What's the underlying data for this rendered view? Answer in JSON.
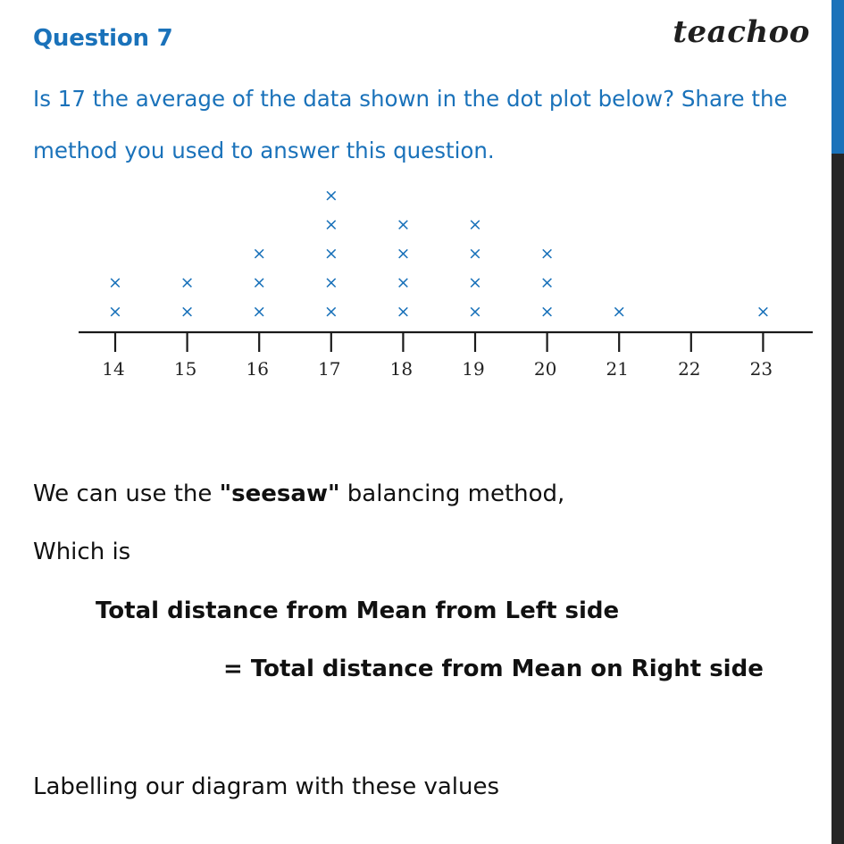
{
  "header": {
    "title": "Question 7",
    "brand": "teachoo"
  },
  "question": {
    "text": "Is 17 the average of the data shown in the dot plot below? Share the method you used to answer this question."
  },
  "chart_data": {
    "type": "scatter",
    "marker": "×",
    "x_ticks": [
      14,
      15,
      16,
      17,
      18,
      19,
      20,
      21,
      22,
      23
    ],
    "x_range": [
      14,
      23
    ],
    "counts": [
      {
        "x": 14,
        "count": 2
      },
      {
        "x": 15,
        "count": 2
      },
      {
        "x": 16,
        "count": 3
      },
      {
        "x": 17,
        "count": 5
      },
      {
        "x": 18,
        "count": 4
      },
      {
        "x": 19,
        "count": 4
      },
      {
        "x": 20,
        "count": 3
      },
      {
        "x": 21,
        "count": 1
      },
      {
        "x": 22,
        "count": 0
      },
      {
        "x": 23,
        "count": 1
      }
    ],
    "grid": false
  },
  "explanation": {
    "intro_pre": "We can use the ",
    "intro_bold": "\"seesaw\"",
    "intro_post": " balancing method,",
    "which": "Which is",
    "rule_left": "Total distance from Mean from Left side",
    "rule_right": "= Total distance from Mean on Right side",
    "labelling": "Labelling our diagram with these values"
  },
  "colors": {
    "accent": "#1a72ba",
    "text": "#111111",
    "marker": "#1a72ba",
    "bar": "#262626"
  }
}
